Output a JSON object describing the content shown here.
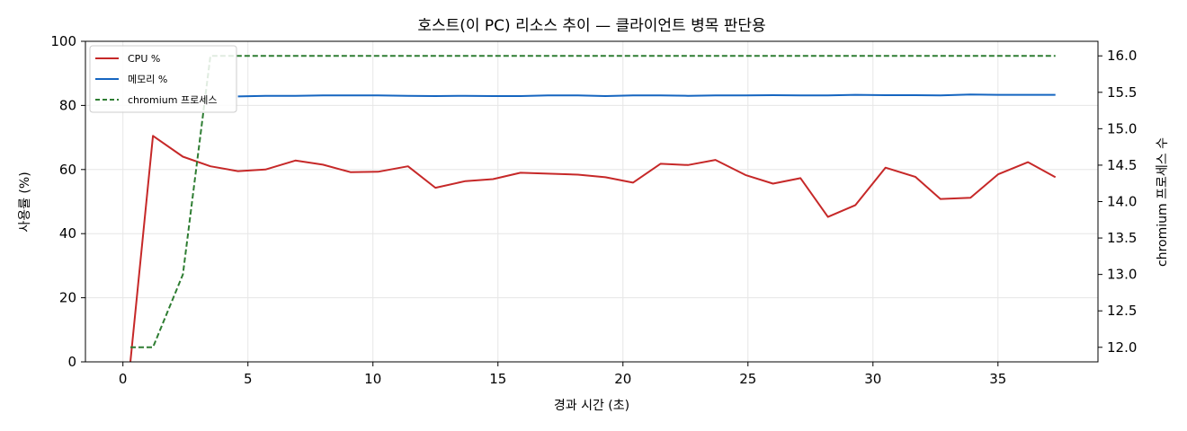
{
  "chart_data": {
    "type": "line",
    "title": "호스트(이 PC) 리소스 추이 — 클라이언트 병목 판단용",
    "xlabel": "경과 시간 (초)",
    "ylabel_left": "사용률 (%)",
    "ylabel_right": "chromium 프로세스 수",
    "xlim": [
      -1.5,
      39.0
    ],
    "ylim_left": [
      0,
      100
    ],
    "ylim_right": [
      11.8,
      16.2
    ],
    "xticks": [
      0,
      5,
      10,
      15,
      20,
      25,
      30,
      35
    ],
    "yticks_left": [
      0,
      20,
      40,
      60,
      80,
      100
    ],
    "yticks_right": [
      12.0,
      12.5,
      13.0,
      13.5,
      14.0,
      14.5,
      15.0,
      15.5,
      16.0
    ],
    "grid": true,
    "legend_position": "top-left",
    "x": [
      0.3,
      1.2,
      2.4,
      3.5,
      4.6,
      5.7,
      6.9,
      8.0,
      9.1,
      10.2,
      11.4,
      12.5,
      13.7,
      14.8,
      15.9,
      17.0,
      18.2,
      19.3,
      20.4,
      21.5,
      22.6,
      23.7,
      24.9,
      26.0,
      27.1,
      28.2,
      29.3,
      30.5,
      31.7,
      32.7,
      33.9,
      35.0,
      36.2,
      37.3
    ],
    "series": [
      {
        "name": "CPU %",
        "axis": "left",
        "color": "#c62828",
        "style": "solid",
        "values": [
          0,
          70.5,
          64,
          61,
          59.5,
          60,
          62.8,
          61.5,
          59.2,
          59.3,
          61,
          54.3,
          56.4,
          57,
          59,
          58.7,
          58.4,
          57.6,
          55.9,
          61.8,
          61.4,
          63,
          58.3,
          55.6,
          57.3,
          45.2,
          48.9,
          60.6,
          57.7,
          50.8,
          51.2,
          58.5,
          62.3,
          57.6
        ]
      },
      {
        "name": "메모리 %",
        "axis": "left",
        "color": "#1565c0",
        "style": "solid",
        "values": [
          null,
          null,
          null,
          null,
          82.8,
          83,
          83,
          83.1,
          83.1,
          83.1,
          83,
          82.9,
          83,
          82.9,
          82.9,
          83.1,
          83.1,
          82.9,
          83.1,
          83.1,
          83,
          83.1,
          83.1,
          83.2,
          83.1,
          83.1,
          83.3,
          83.2,
          83.2,
          83.1,
          83.4,
          83.3,
          83.3,
          83.3
        ]
      },
      {
        "name": "chromium 프로세스",
        "axis": "right",
        "color": "#2e7d32",
        "style": "dashed",
        "values": [
          12,
          12,
          13,
          16,
          16,
          16,
          16,
          16,
          16,
          16,
          16,
          16,
          16,
          16,
          16,
          16,
          16,
          16,
          16,
          16,
          16,
          16,
          16,
          16,
          16,
          16,
          16,
          16,
          16,
          16,
          16,
          16,
          16,
          16
        ]
      }
    ]
  }
}
